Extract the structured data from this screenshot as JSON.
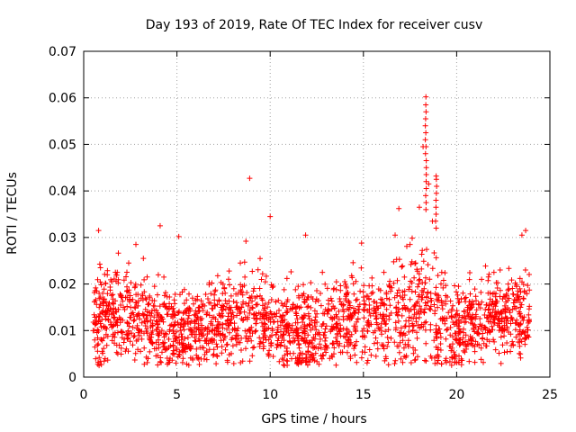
{
  "chart_data": {
    "type": "scatter",
    "title": "Day 193 of 2019, Rate Of TEC Index for receiver cusv",
    "xlabel": "GPS time / hours",
    "ylabel": "ROTI / TECUs",
    "xlim": [
      0,
      25
    ],
    "ylim": [
      0,
      0.07
    ],
    "x_ticks": [
      0,
      5,
      10,
      15,
      20,
      25
    ],
    "y_ticks": [
      0,
      0.01,
      0.02,
      0.03,
      0.04,
      0.05,
      0.06,
      0.07
    ],
    "x_tick_labels": [
      "0",
      "5",
      "10",
      "15",
      "20",
      "25"
    ],
    "y_tick_labels": [
      "0",
      "0.01",
      "0.02",
      "0.03",
      "0.04",
      "0.05",
      "0.06",
      "0.07"
    ],
    "grid": true,
    "marker": "+",
    "marker_color": "#ff0000",
    "data_coverage_hours": [
      0.5,
      23.9
    ],
    "series": [
      {
        "name": "ROTI",
        "points": [
          [
            0.6,
            0.0115
          ],
          [
            0.7,
            0.0185
          ],
          [
            0.8,
            0.0315
          ],
          [
            0.9,
            0.0235
          ],
          [
            1.0,
            0.0078
          ],
          [
            1.2,
            0.0162
          ],
          [
            1.5,
            0.0205
          ],
          [
            1.7,
            0.0225
          ],
          [
            2.0,
            0.0098
          ],
          [
            2.2,
            0.0145
          ],
          [
            2.5,
            0.0175
          ],
          [
            2.8,
            0.0285
          ],
          [
            3.0,
            0.0125
          ],
          [
            3.2,
            0.0255
          ],
          [
            3.5,
            0.0158
          ],
          [
            3.8,
            0.0195
          ],
          [
            4.1,
            0.0325
          ],
          [
            4.3,
            0.0215
          ],
          [
            4.6,
            0.0172
          ],
          [
            4.9,
            0.0118
          ],
          [
            5.1,
            0.0302
          ],
          [
            5.4,
            0.0188
          ],
          [
            5.7,
            0.0142
          ],
          [
            6.0,
            0.0165
          ],
          [
            6.3,
            0.0095
          ],
          [
            6.6,
            0.0135
          ],
          [
            6.9,
            0.0082
          ],
          [
            7.2,
            0.0112
          ],
          [
            7.5,
            0.0152
          ],
          [
            7.8,
            0.0228
          ],
          [
            8.1,
            0.0105
          ],
          [
            8.4,
            0.0245
          ],
          [
            8.7,
            0.0292
          ],
          [
            8.9,
            0.0427
          ],
          [
            9.1,
            0.0185
          ],
          [
            9.4,
            0.0138
          ],
          [
            9.7,
            0.0115
          ],
          [
            10.0,
            0.0345
          ],
          [
            10.3,
            0.0162
          ],
          [
            10.6,
            0.0128
          ],
          [
            10.9,
            0.0212
          ],
          [
            11.2,
            0.0148
          ],
          [
            11.5,
            0.0195
          ],
          [
            11.9,
            0.0305
          ],
          [
            12.2,
            0.0172
          ],
          [
            12.5,
            0.0118
          ],
          [
            12.8,
            0.0225
          ],
          [
            13.1,
            0.0145
          ],
          [
            13.4,
            0.0188
          ],
          [
            13.7,
            0.0098
          ],
          [
            14.0,
            0.0205
          ],
          [
            14.3,
            0.0135
          ],
          [
            14.6,
            0.0165
          ],
          [
            14.9,
            0.0288
          ],
          [
            15.2,
            0.0112
          ],
          [
            15.5,
            0.0182
          ],
          [
            15.8,
            0.0148
          ],
          [
            16.1,
            0.0225
          ],
          [
            16.4,
            0.0195
          ],
          [
            16.7,
            0.0305
          ],
          [
            16.9,
            0.0362
          ],
          [
            17.2,
            0.0215
          ],
          [
            17.5,
            0.0285
          ],
          [
            17.8,
            0.0245
          ],
          [
            18.0,
            0.0365
          ],
          [
            18.2,
            0.0495
          ],
          [
            18.35,
            0.0602
          ],
          [
            18.5,
            0.0415
          ],
          [
            18.7,
            0.0335
          ],
          [
            18.9,
            0.0432
          ],
          [
            19.2,
            0.0225
          ],
          [
            19.5,
            0.0172
          ],
          [
            19.8,
            0.0118
          ],
          [
            20.1,
            0.0195
          ],
          [
            20.4,
            0.0142
          ],
          [
            20.7,
            0.0162
          ],
          [
            21.0,
            0.0125
          ],
          [
            21.3,
            0.0182
          ],
          [
            21.6,
            0.0155
          ],
          [
            22.0,
            0.0225
          ],
          [
            22.3,
            0.0135
          ],
          [
            22.6,
            0.0172
          ],
          [
            22.9,
            0.0115
          ],
          [
            23.2,
            0.0198
          ],
          [
            23.5,
            0.0305
          ],
          [
            23.7,
            0.0315
          ],
          [
            23.9,
            0.0152
          ]
        ]
      }
    ]
  }
}
